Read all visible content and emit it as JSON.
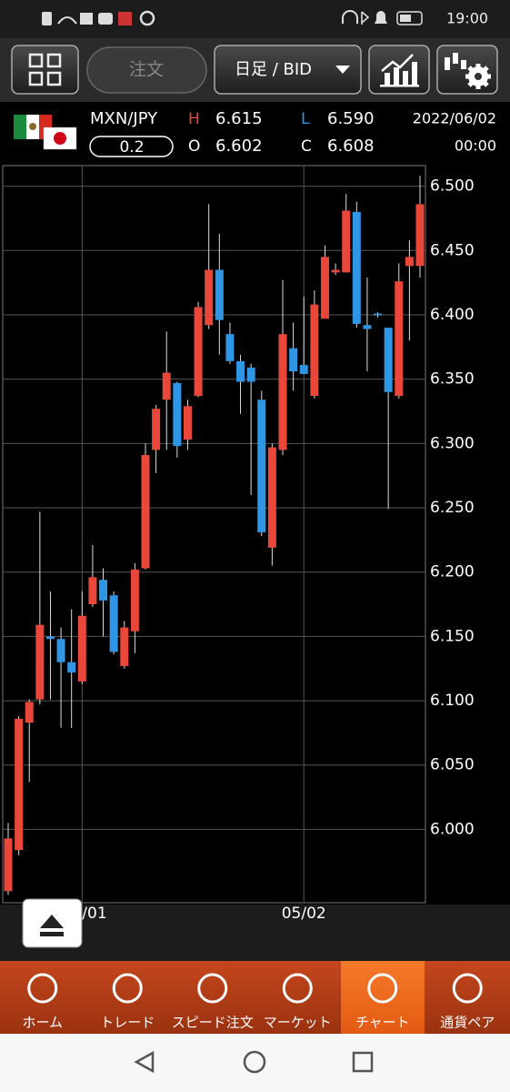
{
  "status": {
    "time": "19:00"
  },
  "toolbar": {
    "order": "注文",
    "timeframe": "日足 / BID"
  },
  "info": {
    "pair": "MXN/JPY",
    "spread": "0.2",
    "high_label": "H",
    "high": "6.615",
    "low_label": "L",
    "low": "6.590",
    "open_label": "O",
    "open": "6.602",
    "close_label": "C",
    "close": "6.608",
    "date": "2022/06/02",
    "time": "00:00"
  },
  "nav": [
    "ホーム",
    "トレード",
    "スピード注文",
    "マーケット",
    "チャート",
    "通貨ペア"
  ],
  "chart_data": {
    "type": "candlestick",
    "up_color": "#e8473a",
    "down_color": "#2f96e6",
    "ylim": [
      5.943,
      6.516
    ],
    "yticks": [
      {
        "value": 6.0,
        "label": "6.000"
      },
      {
        "value": 6.05,
        "label": "6.050"
      },
      {
        "value": 6.1,
        "label": "6.100"
      },
      {
        "value": 6.15,
        "label": "6.150"
      },
      {
        "value": 6.2,
        "label": "6.200"
      },
      {
        "value": 6.25,
        "label": "6.250"
      },
      {
        "value": 6.3,
        "label": "6.300"
      },
      {
        "value": 6.35,
        "label": "6.350"
      },
      {
        "value": 6.4,
        "label": "6.400"
      },
      {
        "value": 6.45,
        "label": "6.450"
      },
      {
        "value": 6.5,
        "label": "6.500"
      }
    ],
    "xticks": [
      {
        "value": 7,
        "label": "/01"
      },
      {
        "value": 28,
        "label": "05/02"
      }
    ],
    "grid": true,
    "open": [
      5.952,
      5.984,
      6.083,
      6.101,
      6.15,
      6.148,
      6.13,
      6.115,
      6.175,
      6.194,
      6.182,
      6.127,
      6.154,
      6.203,
      6.295,
      6.334,
      6.347,
      6.303,
      6.337,
      6.392,
      6.435,
      6.385,
      6.364,
      6.359,
      6.334,
      6.219,
      6.295,
      6.374,
      6.361,
      6.337,
      6.397,
      6.433,
      6.433,
      6.48,
      6.392,
      6.401,
      6.39,
      6.337,
      6.438,
      6.438
    ],
    "high": [
      6.005,
      6.088,
      6.101,
      6.247,
      6.185,
      6.157,
      6.171,
      6.185,
      6.221,
      6.203,
      6.185,
      6.162,
      6.207,
      6.3,
      6.33,
      6.387,
      6.348,
      6.334,
      6.41,
      6.486,
      6.463,
      6.394,
      6.369,
      6.362,
      6.341,
      6.3,
      6.427,
      6.394,
      6.414,
      6.419,
      6.454,
      6.44,
      6.494,
      6.488,
      6.429,
      6.402,
      6.39,
      6.44,
      6.458,
      6.508
    ],
    "low": [
      5.949,
      5.98,
      6.037,
      6.097,
      6.101,
      6.079,
      6.079,
      6.113,
      6.173,
      6.15,
      6.136,
      6.125,
      6.137,
      6.202,
      6.277,
      6.295,
      6.289,
      6.295,
      6.336,
      6.389,
      6.369,
      6.362,
      6.323,
      6.26,
      6.228,
      6.205,
      6.291,
      6.341,
      6.354,
      6.335,
      6.397,
      6.431,
      6.433,
      6.39,
      6.356,
      6.398,
      6.249,
      6.335,
      6.38,
      6.429
    ],
    "close": [
      5.993,
      6.086,
      6.099,
      6.159,
      6.148,
      6.13,
      6.122,
      6.166,
      6.196,
      6.178,
      6.138,
      6.157,
      6.202,
      6.291,
      6.327,
      6.355,
      6.298,
      6.329,
      6.406,
      6.435,
      6.396,
      6.364,
      6.348,
      6.348,
      6.231,
      6.297,
      6.385,
      6.356,
      6.354,
      6.408,
      6.445,
      6.435,
      6.481,
      6.393,
      6.389,
      6.4,
      6.34,
      6.426,
      6.445,
      6.486
    ]
  }
}
